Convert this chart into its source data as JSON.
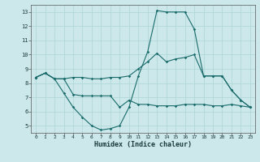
{
  "xlabel": "Humidex (Indice chaleur)",
  "xlim": [
    -0.5,
    23.5
  ],
  "ylim": [
    4.5,
    13.5
  ],
  "yticks": [
    5,
    6,
    7,
    8,
    9,
    10,
    11,
    12,
    13
  ],
  "xticks": [
    0,
    1,
    2,
    3,
    4,
    5,
    6,
    7,
    8,
    9,
    10,
    11,
    12,
    13,
    14,
    15,
    16,
    17,
    18,
    19,
    20,
    21,
    22,
    23
  ],
  "bg_color": "#cce8ea",
  "line_color": "#1a6b6b",
  "grid_color": "#b0d8da",
  "line1_x": [
    0,
    1,
    2,
    3,
    4,
    5,
    6,
    7,
    8,
    9,
    10,
    11,
    12,
    13,
    14,
    15,
    16,
    17,
    18,
    19,
    20,
    21,
    22,
    23
  ],
  "line1_y": [
    8.4,
    8.7,
    8.3,
    8.3,
    8.4,
    8.4,
    8.3,
    8.3,
    8.4,
    8.4,
    8.5,
    9.0,
    9.5,
    10.1,
    9.5,
    9.7,
    9.8,
    10.0,
    8.5,
    8.5,
    8.5,
    7.5,
    6.8,
    6.3
  ],
  "line2_x": [
    0,
    1,
    2,
    3,
    4,
    5,
    6,
    7,
    8,
    9,
    10,
    11,
    12,
    13,
    14,
    15,
    16,
    17,
    18,
    19,
    20,
    21,
    22,
    23
  ],
  "line2_y": [
    8.4,
    8.7,
    8.3,
    7.3,
    6.3,
    5.6,
    5.0,
    4.7,
    4.8,
    5.0,
    6.3,
    8.5,
    10.2,
    13.1,
    13.0,
    13.0,
    13.0,
    11.8,
    8.5,
    8.5,
    8.5,
    7.5,
    6.8,
    6.3
  ],
  "line3_x": [
    0,
    1,
    2,
    3,
    4,
    5,
    6,
    7,
    8,
    9,
    10,
    11,
    12,
    13,
    14,
    15,
    16,
    17,
    18,
    19,
    20,
    21,
    22,
    23
  ],
  "line3_y": [
    8.4,
    8.7,
    8.3,
    8.3,
    7.2,
    7.1,
    7.1,
    7.1,
    7.1,
    6.3,
    6.8,
    6.5,
    6.5,
    6.4,
    6.4,
    6.4,
    6.5,
    6.5,
    6.5,
    6.4,
    6.4,
    6.5,
    6.4,
    6.3
  ]
}
